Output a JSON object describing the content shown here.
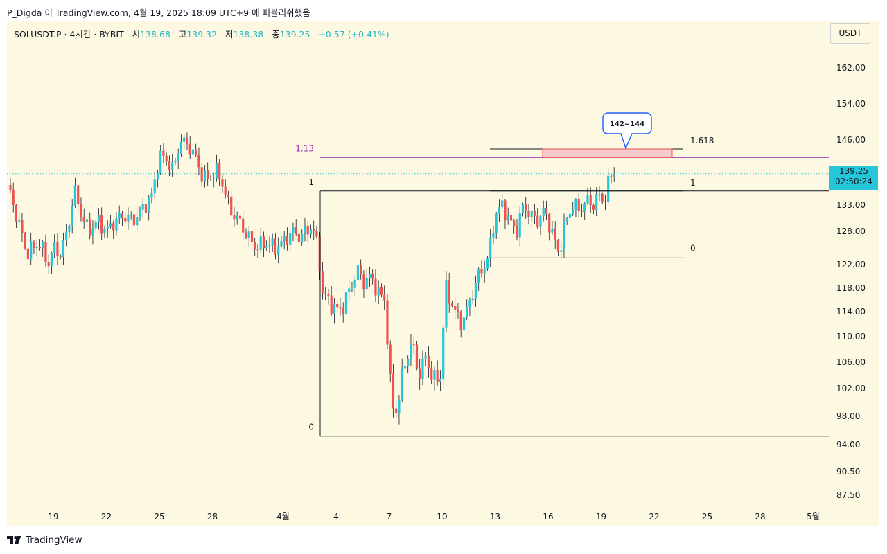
{
  "header": {
    "publish_line": "P_Digda 이 TradingView.com, 4월 19, 2025 18:09 UTC+9 에 퍼블리쉬했음"
  },
  "legend": {
    "symbol": "SOLUSDT.P · 4시간 · BYBIT",
    "open_label": "시",
    "open_value": "138.68",
    "high_label": "고",
    "high_value": "139.32",
    "low_label": "저",
    "low_value": "138.38",
    "close_label": "종",
    "close_value": "139.25",
    "change": "+0.57 (+0.41%)"
  },
  "price_axis": {
    "currency_label": "USDT",
    "current_price": "139.25",
    "countdown": "02:50:24"
  },
  "brand": {
    "name": "TradingView"
  },
  "colors": {
    "up": "#26c6da",
    "down": "#ef5350",
    "background": "#fdf8e2",
    "fib_line": "#131722",
    "target_line": "#9c27b0",
    "zone_fill": "#f7c5cc",
    "zone_border": "#ef5350",
    "callout_border": "#2962ff"
  },
  "chart_data": {
    "type": "candlestick",
    "symbol": "SOLUSDT.P",
    "interval": "4시간",
    "exchange": "BYBIT",
    "y_ticks": [
      162.0,
      154.0,
      146.0,
      139.25,
      133.0,
      128.0,
      122.0,
      118.0,
      114.0,
      110.0,
      106.0,
      102.0,
      98.0,
      94.0,
      90.5,
      87.5
    ],
    "y_tick_labels": [
      "162.00",
      "154.00",
      "146.00",
      "133.00",
      "128.00",
      "122.00",
      "118.00",
      "114.00",
      "110.00",
      "106.00",
      "102.00",
      "98.00",
      "94.00",
      "90.50",
      "87.50"
    ],
    "x_tick_labels": [
      "19",
      "22",
      "25",
      "28",
      "4월",
      "4",
      "7",
      "10",
      "13",
      "16",
      "19",
      "22",
      "25",
      "28",
      "5월"
    ],
    "x_ticks": [
      {
        "label": "19",
        "day": 0
      },
      {
        "label": "22",
        "day": 3
      },
      {
        "label": "25",
        "day": 6
      },
      {
        "label": "28",
        "day": 9
      },
      {
        "label": "4월",
        "day": 13
      },
      {
        "label": "4",
        "day": 16
      },
      {
        "label": "7",
        "day": 19
      },
      {
        "label": "10",
        "day": 22
      },
      {
        "label": "13",
        "day": 25
      },
      {
        "label": "16",
        "day": 28
      },
      {
        "label": "19",
        "day": 31
      },
      {
        "label": "22",
        "day": 34
      },
      {
        "label": "25",
        "day": 37
      },
      {
        "label": "28",
        "day": 40
      },
      {
        "label": "5월",
        "day": 43
      }
    ],
    "price_path": [
      [
        -2.6,
        137
      ],
      [
        -2.0,
        130
      ],
      [
        -1.5,
        124
      ],
      [
        -0.8,
        126
      ],
      [
        -0.3,
        122
      ],
      [
        0.0,
        125
      ],
      [
        0.4,
        124
      ],
      [
        0.8,
        128
      ],
      [
        1.2,
        136
      ],
      [
        1.6,
        131
      ],
      [
        2.0,
        128
      ],
      [
        2.5,
        130
      ],
      [
        3.0,
        128
      ],
      [
        3.5,
        130
      ],
      [
        4.0,
        131
      ],
      [
        4.5,
        130
      ],
      [
        5.0,
        132
      ],
      [
        5.6,
        135
      ],
      [
        6.0,
        143
      ],
      [
        6.4,
        142
      ],
      [
        6.8,
        140
      ],
      [
        7.2,
        146
      ],
      [
        7.6,
        145
      ],
      [
        8.0,
        143
      ],
      [
        8.4,
        139
      ],
      [
        8.8,
        138
      ],
      [
        9.2,
        140
      ],
      [
        9.6,
        137
      ],
      [
        10.0,
        132
      ],
      [
        10.5,
        130
      ],
      [
        11.0,
        127
      ],
      [
        11.5,
        125
      ],
      [
        12.0,
        126
      ],
      [
        12.5,
        125
      ],
      [
        13.0,
        126
      ],
      [
        13.5,
        128
      ],
      [
        14.0,
        127
      ],
      [
        14.6,
        129
      ],
      [
        15.0,
        125
      ],
      [
        15.2,
        117
      ],
      [
        15.6,
        116
      ],
      [
        16.0,
        114
      ],
      [
        16.4,
        115
      ],
      [
        16.8,
        118
      ],
      [
        17.2,
        121
      ],
      [
        17.6,
        119
      ],
      [
        18.0,
        120
      ],
      [
        18.4,
        117
      ],
      [
        18.8,
        116
      ],
      [
        19.0,
        104
      ],
      [
        19.3,
        98
      ],
      [
        19.5,
        100
      ],
      [
        19.9,
        106
      ],
      [
        20.3,
        109
      ],
      [
        20.7,
        104
      ],
      [
        21.1,
        107
      ],
      [
        21.5,
        103
      ],
      [
        21.9,
        104
      ],
      [
        22.2,
        118
      ],
      [
        22.6,
        115
      ],
      [
        23.0,
        112
      ],
      [
        23.4,
        114
      ],
      [
        23.8,
        118
      ],
      [
        24.2,
        121
      ],
      [
        24.6,
        123
      ],
      [
        25.0,
        131
      ],
      [
        25.4,
        133
      ],
      [
        25.8,
        130
      ],
      [
        26.2,
        128
      ],
      [
        26.6,
        133
      ],
      [
        27.0,
        131
      ],
      [
        27.4,
        130
      ],
      [
        27.8,
        132
      ],
      [
        28.2,
        128
      ],
      [
        28.6,
        124
      ],
      [
        29.0,
        130
      ],
      [
        29.4,
        133
      ],
      [
        29.8,
        132
      ],
      [
        30.2,
        134
      ],
      [
        30.6,
        133
      ],
      [
        30.8,
        135
      ],
      [
        31.2,
        134
      ],
      [
        31.5,
        139
      ],
      [
        31.8,
        139.25
      ]
    ],
    "fib_left": {
      "levels": [
        {
          "label": "1.13",
          "value": 142.5
        },
        {
          "label": "1",
          "value": 135.8
        },
        {
          "label": "0",
          "value": 95.2
        }
      ]
    },
    "fib_right": {
      "levels": [
        {
          "label": "1.618",
          "value": 144.2
        },
        {
          "label": "1",
          "value": 135.8
        },
        {
          "label": "0",
          "value": 123.2
        }
      ]
    },
    "target_zone": {
      "low": 142.5,
      "high": 144.2,
      "label": "142~144"
    },
    "current_price": 139.25
  }
}
